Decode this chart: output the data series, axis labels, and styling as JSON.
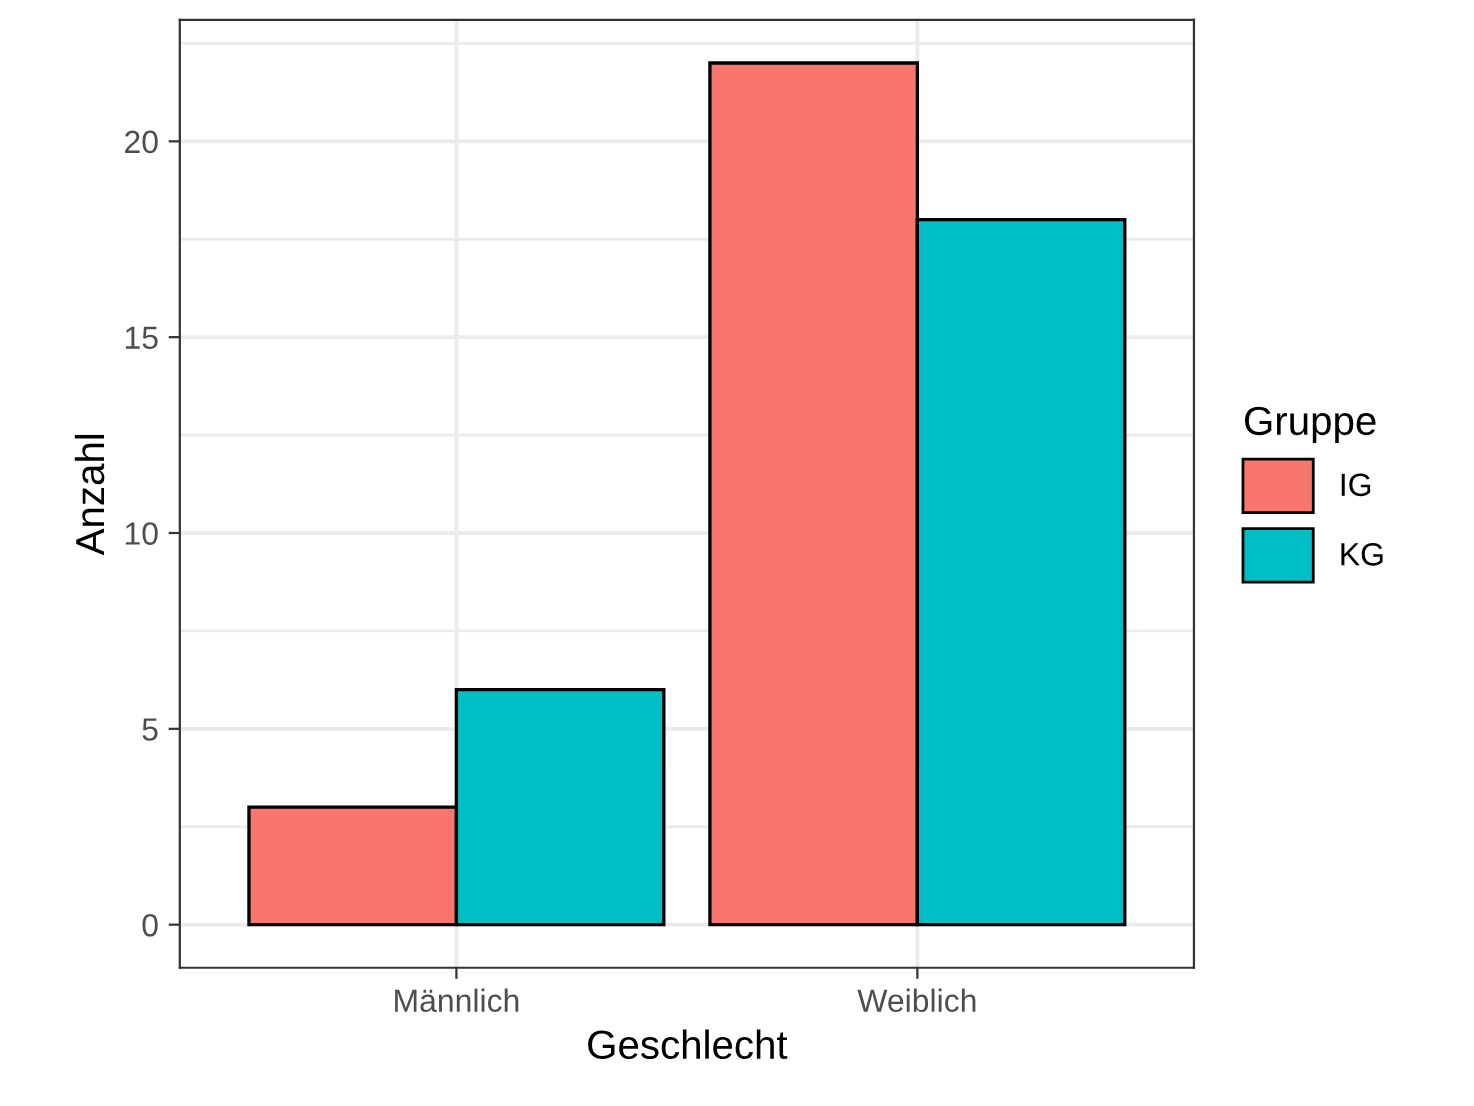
{
  "chart_data": {
    "type": "bar",
    "xlabel": "Geschlecht",
    "ylabel": "Anzahl",
    "legend_title": "Gruppe",
    "categories": [
      "Männlich",
      "Weiblich"
    ],
    "series": [
      {
        "name": "IG",
        "color": "#f8766d",
        "values": [
          3,
          22
        ]
      },
      {
        "name": "KG",
        "color": "#00bfc4",
        "values": [
          6,
          18
        ]
      }
    ],
    "ylim": [
      -1.1,
      23.1
    ],
    "yticks": [
      0,
      5,
      10,
      15,
      20
    ],
    "grid": true,
    "legend": "right"
  }
}
